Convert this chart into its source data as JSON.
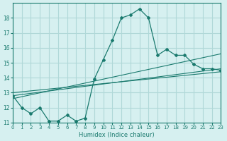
{
  "xlabel": "Humidex (Indice chaleur)",
  "ylabel": "",
  "xlim": [
    0,
    23
  ],
  "ylim": [
    11,
    19
  ],
  "yticks": [
    11,
    12,
    13,
    14,
    15,
    16,
    17,
    18
  ],
  "xticks": [
    0,
    1,
    2,
    3,
    4,
    5,
    6,
    7,
    8,
    9,
    10,
    11,
    12,
    13,
    14,
    15,
    16,
    17,
    18,
    19,
    20,
    21,
    22,
    23
  ],
  "bg_color": "#d6f0f0",
  "line_color": "#1a7a6e",
  "grid_color": "#b0d8d8",
  "main_x": [
    0,
    1,
    2,
    3,
    4,
    5,
    6,
    7,
    8,
    9,
    10,
    11,
    12,
    13,
    14,
    15,
    16,
    17,
    18,
    19,
    20,
    21,
    22,
    23
  ],
  "main_y": [
    12.8,
    12.0,
    11.6,
    12.0,
    11.1,
    11.1,
    11.5,
    11.1,
    11.3,
    13.9,
    15.2,
    16.5,
    18.0,
    18.2,
    18.6,
    18.0,
    15.5,
    15.9,
    15.5,
    15.5,
    14.9,
    14.6,
    14.6,
    14.5
  ],
  "trend1_x": [
    0,
    23
  ],
  "trend1_y": [
    12.8,
    14.6
  ],
  "trend2_x": [
    0,
    23
  ],
  "trend2_y": [
    12.6,
    15.6
  ],
  "trend3_x": [
    0,
    23
  ],
  "trend3_y": [
    13.0,
    14.4
  ]
}
